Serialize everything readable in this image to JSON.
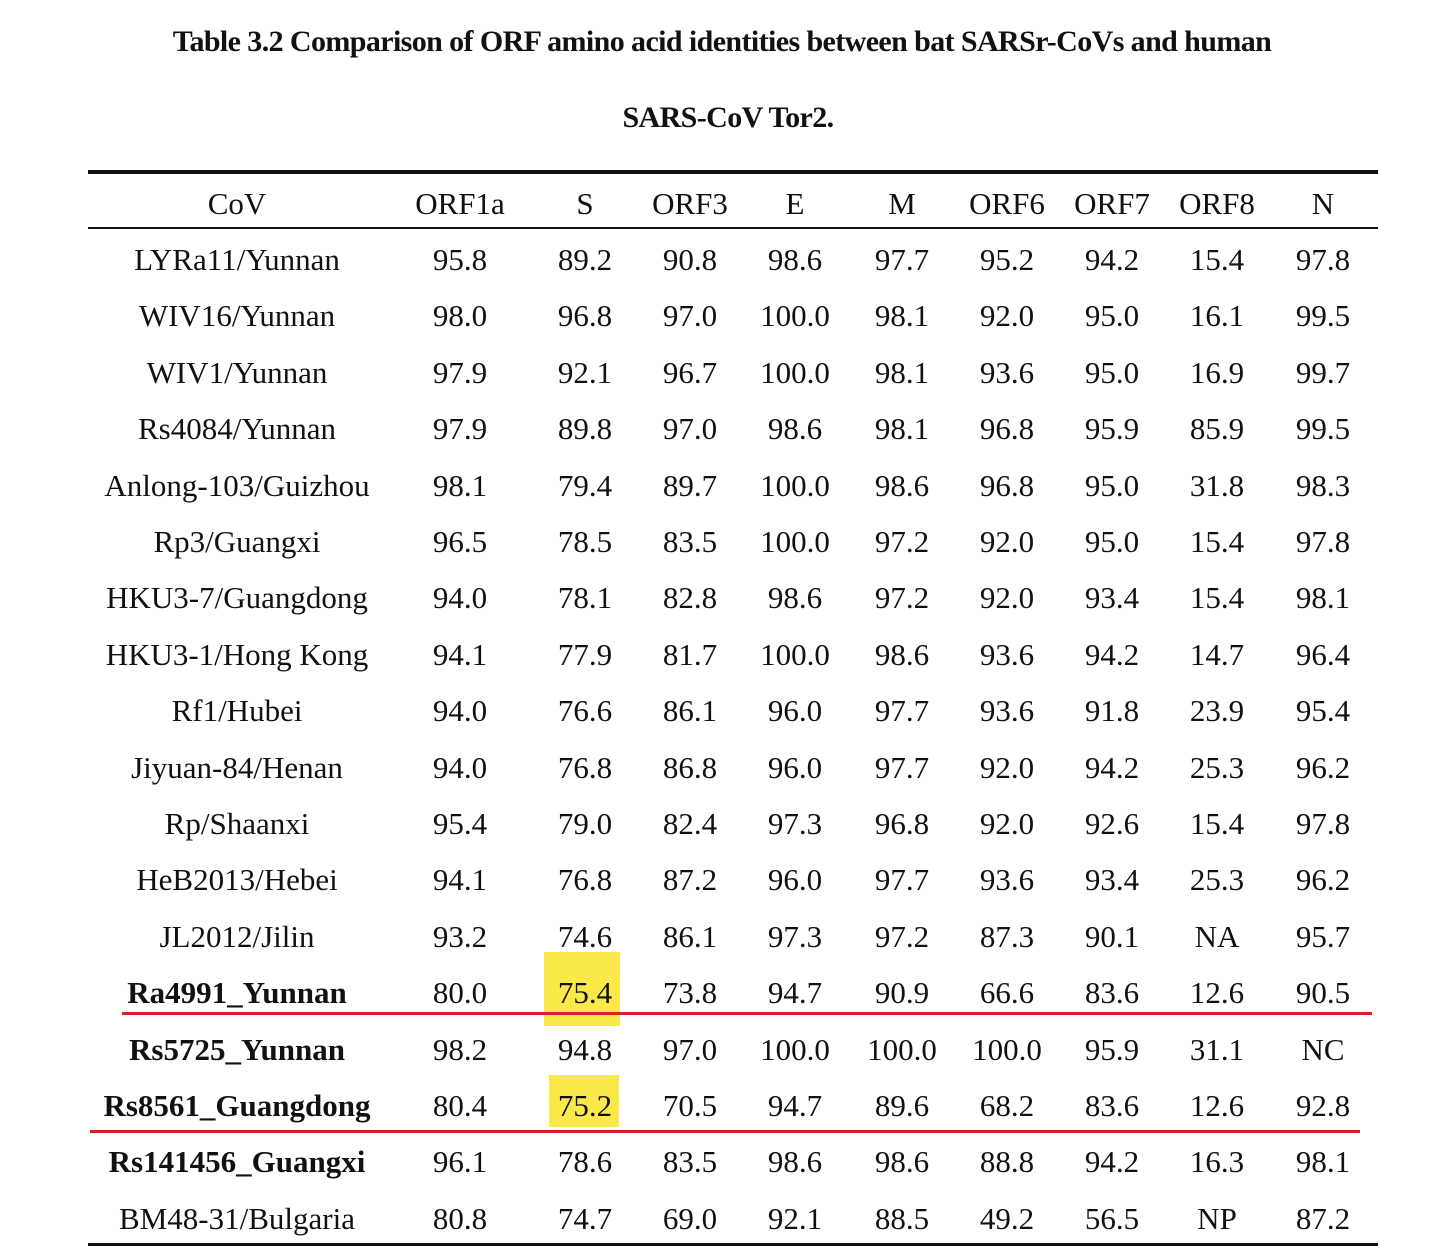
{
  "title": {
    "line1": "Table 3.2 Comparison of ORF amino acid identities between bat SARSr-CoVs and human",
    "line2": "SARS-CoV Tor2."
  },
  "table": {
    "header": [
      "CoV",
      "ORF1a",
      "S",
      "ORF3",
      "E",
      "M",
      "ORF6",
      "ORF7",
      "ORF8",
      "N"
    ],
    "rows": [
      [
        "LYRa11/Yunnan",
        "95.8",
        "89.2",
        "90.8",
        "98.6",
        "97.7",
        "95.2",
        "94.2",
        "15.4",
        "97.8"
      ],
      [
        "WIV16/Yunnan",
        "98.0",
        "96.8",
        "97.0",
        "100.0",
        "98.1",
        "92.0",
        "95.0",
        "16.1",
        "99.5"
      ],
      [
        "WIV1/Yunnan",
        "97.9",
        "92.1",
        "96.7",
        "100.0",
        "98.1",
        "93.6",
        "95.0",
        "16.9",
        "99.7"
      ],
      [
        "Rs4084/Yunnan",
        "97.9",
        "89.8",
        "97.0",
        "98.6",
        "98.1",
        "96.8",
        "95.9",
        "85.9",
        "99.5"
      ],
      [
        "Anlong-103/Guizhou",
        "98.1",
        "79.4",
        "89.7",
        "100.0",
        "98.6",
        "96.8",
        "95.0",
        "31.8",
        "98.3"
      ],
      [
        "Rp3/Guangxi",
        "96.5",
        "78.5",
        "83.5",
        "100.0",
        "97.2",
        "92.0",
        "95.0",
        "15.4",
        "97.8"
      ],
      [
        "HKU3-7/Guangdong",
        "94.0",
        "78.1",
        "82.8",
        "98.6",
        "97.2",
        "92.0",
        "93.4",
        "15.4",
        "98.1"
      ],
      [
        "HKU3-1/Hong Kong",
        "94.1",
        "77.9",
        "81.7",
        "100.0",
        "98.6",
        "93.6",
        "94.2",
        "14.7",
        "96.4"
      ],
      [
        "Rf1/Hubei",
        "94.0",
        "76.6",
        "86.1",
        "96.0",
        "97.7",
        "93.6",
        "91.8",
        "23.9",
        "95.4"
      ],
      [
        "Jiyuan-84/Henan",
        "94.0",
        "76.8",
        "86.8",
        "96.0",
        "97.7",
        "92.0",
        "94.2",
        "25.3",
        "96.2"
      ],
      [
        "Rp/Shaanxi",
        "95.4",
        "79.0",
        "82.4",
        "97.3",
        "96.8",
        "92.0",
        "92.6",
        "15.4",
        "97.8"
      ],
      [
        "HeB2013/Hebei",
        "94.1",
        "76.8",
        "87.2",
        "96.0",
        "97.7",
        "93.6",
        "93.4",
        "25.3",
        "96.2"
      ],
      [
        "JL2012/Jilin",
        "93.2",
        "74.6",
        "86.1",
        "97.3",
        "97.2",
        "87.3",
        "90.1",
        "NA",
        "95.7"
      ],
      [
        "Ra4991_Yunnan",
        "80.0",
        "75.4",
        "73.8",
        "94.7",
        "90.9",
        "66.6",
        "83.6",
        "12.6",
        "90.5"
      ],
      [
        "Rs5725_Yunnan",
        "98.2",
        "94.8",
        "97.0",
        "100.0",
        "100.0",
        "100.0",
        "95.9",
        "31.1",
        "NC"
      ],
      [
        "Rs8561_Guangdong",
        "80.4",
        "75.2",
        "70.5",
        "94.7",
        "89.6",
        "68.2",
        "83.6",
        "12.6",
        "92.8"
      ],
      [
        "Rs141456_Guangxi",
        "96.1",
        "78.6",
        "83.5",
        "98.6",
        "98.6",
        "88.8",
        "94.2",
        "16.3",
        "98.1"
      ],
      [
        "BM48-31/Bulgaria",
        "80.8",
        "74.7",
        "69.0",
        "92.1",
        "88.5",
        "49.2",
        "56.5",
        "NP",
        "87.2"
      ]
    ]
  }
}
